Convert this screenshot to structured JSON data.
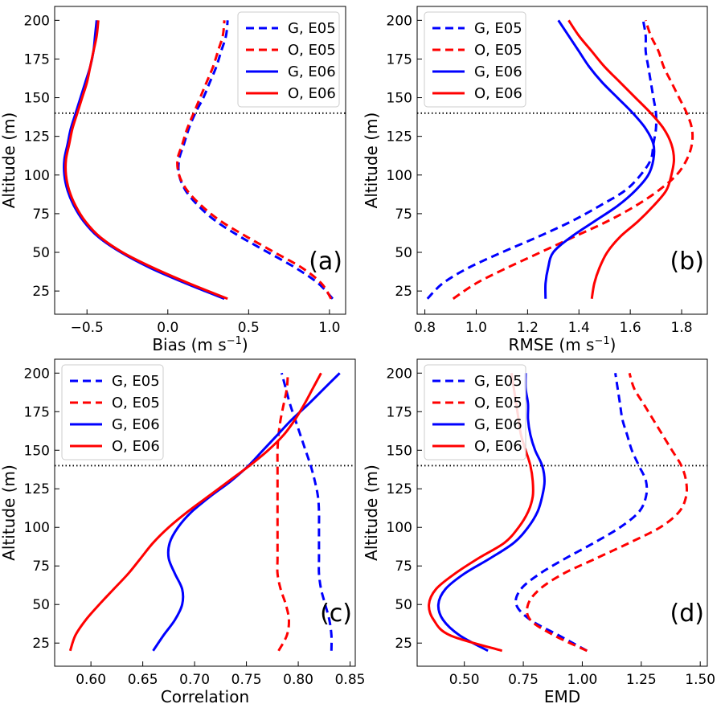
{
  "figure": {
    "description_units": "Altitude (m)"
  },
  "chart_data": [
    {
      "id": "a",
      "type": "line",
      "panel_tag": "(a)",
      "xlabel": "Bias (m s",
      "xlabel_sup": "−1",
      "xlabel_tail": ")",
      "ylabel": "Altitude (m)",
      "xlim": [
        -0.7,
        1.1
      ],
      "ylim": [
        10,
        209
      ],
      "xticks": [
        -0.5,
        0.0,
        0.5,
        1.0
      ],
      "xtick_labels": [
        "−0.5",
        "0.0",
        "0.5",
        "1.0"
      ],
      "yticks": [
        25,
        50,
        75,
        100,
        125,
        150,
        175,
        200
      ],
      "ytick_labels": [
        "25",
        "50",
        "75",
        "100",
        "125",
        "150",
        "175",
        "200"
      ],
      "hline": 140,
      "legend": "top-right",
      "y": [
        20,
        30,
        40,
        50,
        60,
        70,
        80,
        90,
        100,
        110,
        120,
        130,
        140,
        150,
        160,
        170,
        180,
        190,
        200
      ],
      "series": [
        {
          "name": "G, E05",
          "color": "#0000ff",
          "dash": true,
          "x": [
            1.02,
            0.93,
            0.79,
            0.62,
            0.45,
            0.3,
            0.19,
            0.11,
            0.07,
            0.07,
            0.1,
            0.13,
            0.17,
            0.22,
            0.26,
            0.3,
            0.33,
            0.36,
            0.37
          ]
        },
        {
          "name": "O, E05",
          "color": "#ff0000",
          "dash": true,
          "x": [
            1.01,
            0.95,
            0.83,
            0.66,
            0.49,
            0.33,
            0.21,
            0.12,
            0.07,
            0.06,
            0.09,
            0.12,
            0.16,
            0.2,
            0.24,
            0.28,
            0.31,
            0.34,
            0.35
          ]
        },
        {
          "name": "G, E06",
          "color": "#0000ff",
          "dash": false,
          "x": [
            0.35,
            0.11,
            -0.11,
            -0.29,
            -0.43,
            -0.52,
            -0.58,
            -0.62,
            -0.64,
            -0.64,
            -0.62,
            -0.6,
            -0.57,
            -0.54,
            -0.51,
            -0.48,
            -0.46,
            -0.45,
            -0.44
          ]
        },
        {
          "name": "O, E06",
          "color": "#ff0000",
          "dash": false,
          "x": [
            0.37,
            0.13,
            -0.09,
            -0.28,
            -0.42,
            -0.51,
            -0.57,
            -0.61,
            -0.63,
            -0.63,
            -0.61,
            -0.59,
            -0.56,
            -0.53,
            -0.5,
            -0.48,
            -0.46,
            -0.44,
            -0.43
          ]
        }
      ]
    },
    {
      "id": "b",
      "type": "line",
      "panel_tag": "(b)",
      "xlabel": "RMSE (m s",
      "xlabel_sup": "−1",
      "xlabel_tail": ")",
      "ylabel": "Altitude (m)",
      "xlim": [
        0.77,
        1.9
      ],
      "ylim": [
        10,
        209
      ],
      "xticks": [
        0.8,
        1.0,
        1.2,
        1.4,
        1.6,
        1.8
      ],
      "xtick_labels": [
        "0.8",
        "1.0",
        "1.2",
        "1.4",
        "1.6",
        "1.8"
      ],
      "yticks": [
        25,
        50,
        75,
        100,
        125,
        150,
        175,
        200
      ],
      "ytick_labels": [
        "25",
        "50",
        "75",
        "100",
        "125",
        "150",
        "175",
        "200"
      ],
      "hline": 140,
      "legend": "top-left",
      "y": [
        20,
        30,
        40,
        50,
        60,
        70,
        80,
        90,
        100,
        110,
        120,
        130,
        140,
        150,
        160,
        170,
        180,
        190,
        200
      ],
      "series": [
        {
          "name": "G, E05",
          "color": "#0000ff",
          "dash": true,
          "x": [
            0.81,
            0.87,
            0.97,
            1.1,
            1.24,
            1.37,
            1.48,
            1.58,
            1.64,
            1.68,
            1.69,
            1.7,
            1.7,
            1.69,
            1.68,
            1.67,
            1.66,
            1.66,
            1.65
          ]
        },
        {
          "name": "O, E05",
          "color": "#ff0000",
          "dash": true,
          "x": [
            0.91,
            1.0,
            1.12,
            1.25,
            1.38,
            1.51,
            1.62,
            1.71,
            1.78,
            1.82,
            1.84,
            1.84,
            1.82,
            1.79,
            1.76,
            1.73,
            1.71,
            1.68,
            1.66
          ]
        },
        {
          "name": "G, E06",
          "color": "#0000ff",
          "dash": false,
          "x": [
            1.27,
            1.27,
            1.28,
            1.3,
            1.37,
            1.46,
            1.55,
            1.62,
            1.67,
            1.69,
            1.69,
            1.66,
            1.61,
            1.55,
            1.49,
            1.44,
            1.4,
            1.36,
            1.32
          ]
        },
        {
          "name": "O, E06",
          "color": "#ff0000",
          "dash": false,
          "x": [
            1.45,
            1.46,
            1.48,
            1.51,
            1.56,
            1.63,
            1.69,
            1.74,
            1.76,
            1.77,
            1.76,
            1.73,
            1.68,
            1.62,
            1.56,
            1.5,
            1.45,
            1.4,
            1.36
          ]
        }
      ]
    },
    {
      "id": "c",
      "type": "line",
      "panel_tag": "(c)",
      "xlabel": "Correlation",
      "xlabel_sup": "",
      "xlabel_tail": "",
      "ylabel": "Altitude (m)",
      "xlim": [
        0.565,
        0.855
      ],
      "ylim": [
        10,
        209
      ],
      "xticks": [
        0.6,
        0.65,
        0.7,
        0.75,
        0.8,
        0.85
      ],
      "xtick_labels": [
        "0.60",
        "0.65",
        "0.70",
        "0.75",
        "0.80",
        "0.85"
      ],
      "yticks": [
        25,
        50,
        75,
        100,
        125,
        150,
        175,
        200
      ],
      "ytick_labels": [
        "25",
        "50",
        "75",
        "100",
        "125",
        "150",
        "175",
        "200"
      ],
      "hline": 140,
      "legend": "top-left",
      "y": [
        20,
        30,
        40,
        50,
        60,
        70,
        80,
        90,
        100,
        110,
        120,
        130,
        140,
        150,
        160,
        170,
        180,
        190,
        200
      ],
      "series": [
        {
          "name": "G, E05",
          "color": "#0000ff",
          "dash": true,
          "x": [
            0.832,
            0.832,
            0.83,
            0.826,
            0.822,
            0.82,
            0.82,
            0.82,
            0.82,
            0.82,
            0.819,
            0.816,
            0.812,
            0.807,
            0.802,
            0.797,
            0.792,
            0.788,
            0.784
          ]
        },
        {
          "name": "O, E05",
          "color": "#ff0000",
          "dash": true,
          "x": [
            0.781,
            0.789,
            0.791,
            0.788,
            0.783,
            0.78,
            0.78,
            0.78,
            0.78,
            0.78,
            0.78,
            0.78,
            0.78,
            0.78,
            0.781,
            0.783,
            0.786,
            0.789,
            0.79
          ]
        },
        {
          "name": "G, E06",
          "color": "#0000ff",
          "dash": false,
          "x": [
            0.66,
            0.67,
            0.681,
            0.688,
            0.688,
            0.681,
            0.675,
            0.676,
            0.684,
            0.697,
            0.715,
            0.735,
            0.752,
            0.766,
            0.78,
            0.794,
            0.81,
            0.825,
            0.84
          ]
        },
        {
          "name": "O, E06",
          "color": "#ff0000",
          "dash": false,
          "x": [
            0.58,
            0.585,
            0.595,
            0.608,
            0.622,
            0.636,
            0.648,
            0.66,
            0.675,
            0.693,
            0.713,
            0.733,
            0.753,
            0.771,
            0.786,
            0.797,
            0.806,
            0.814,
            0.822
          ]
        }
      ]
    },
    {
      "id": "d",
      "type": "line",
      "panel_tag": "(d)",
      "xlabel": "EMD",
      "xlabel_sup": "",
      "xlabel_tail": "",
      "ylabel": "Altitude (m)",
      "xlim": [
        0.3,
        1.53
      ],
      "ylim": [
        10,
        209
      ],
      "xticks": [
        0.5,
        0.75,
        1.0,
        1.25,
        1.5
      ],
      "xtick_labels": [
        "0.50",
        "0.75",
        "1.00",
        "1.25",
        "1.50"
      ],
      "yticks": [
        25,
        50,
        75,
        100,
        125,
        150,
        175,
        200
      ],
      "ytick_labels": [
        "25",
        "50",
        "75",
        "100",
        "125",
        "150",
        "175",
        "200"
      ],
      "hline": 140,
      "legend": "top-left",
      "y": [
        20,
        30,
        40,
        50,
        60,
        70,
        80,
        90,
        100,
        110,
        120,
        130,
        140,
        150,
        160,
        170,
        180,
        190,
        200
      ],
      "series": [
        {
          "name": "G, E05",
          "color": "#0000ff",
          "dash": true,
          "x": [
            1.02,
            0.9,
            0.78,
            0.72,
            0.74,
            0.82,
            0.93,
            1.05,
            1.16,
            1.24,
            1.27,
            1.27,
            1.24,
            1.21,
            1.19,
            1.17,
            1.16,
            1.15,
            1.14
          ]
        },
        {
          "name": "O, E05",
          "color": "#ff0000",
          "dash": true,
          "x": [
            1.02,
            0.88,
            0.78,
            0.77,
            0.82,
            0.92,
            1.06,
            1.2,
            1.33,
            1.41,
            1.44,
            1.44,
            1.42,
            1.38,
            1.34,
            1.3,
            1.26,
            1.22,
            1.2
          ]
        },
        {
          "name": "G, E06",
          "color": "#0000ff",
          "dash": false,
          "x": [
            0.6,
            0.48,
            0.41,
            0.39,
            0.42,
            0.5,
            0.61,
            0.71,
            0.77,
            0.81,
            0.83,
            0.84,
            0.83,
            0.8,
            0.78,
            0.77,
            0.77,
            0.76,
            0.76
          ]
        },
        {
          "name": "O, E06",
          "color": "#ff0000",
          "dash": false,
          "x": [
            0.66,
            0.44,
            0.37,
            0.35,
            0.38,
            0.46,
            0.56,
            0.67,
            0.73,
            0.77,
            0.79,
            0.79,
            0.78,
            0.76,
            0.74,
            0.73,
            0.72,
            0.71,
            0.7
          ]
        }
      ]
    }
  ]
}
